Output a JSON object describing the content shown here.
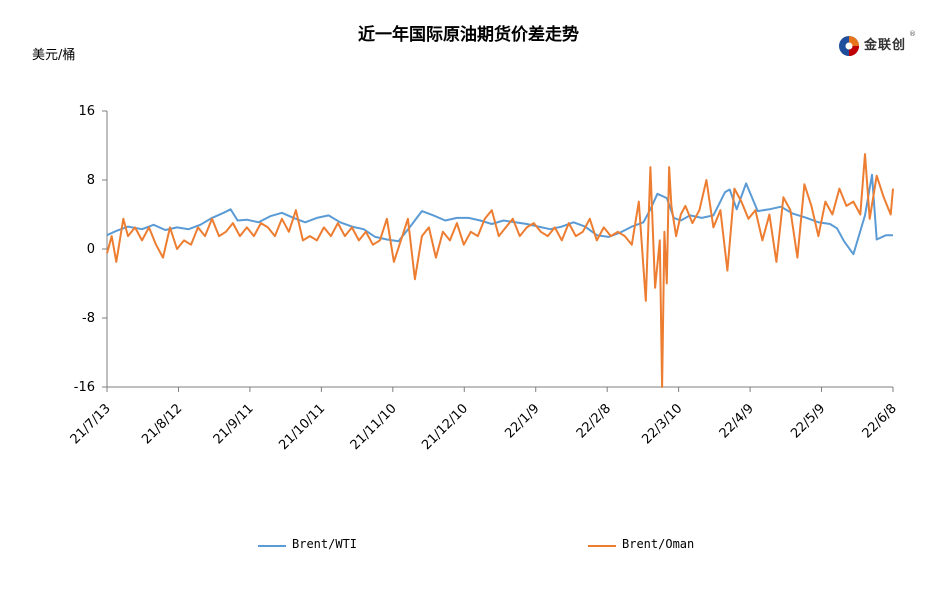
{
  "header": {
    "title": "近一年国际原油期货价差走势",
    "unit": "美元/桶",
    "logo_text": "金联创",
    "logo_reg": "®"
  },
  "chart_data": {
    "type": "line",
    "title": "近一年国际原油期货价差走势",
    "ylabel": "美元/桶",
    "ylim": [
      -16,
      16
    ],
    "yticks": [
      "16",
      "8",
      "0",
      "-8",
      "-16"
    ],
    "xticks": [
      "21/7/13",
      "21/8/12",
      "21/9/11",
      "21/10/11",
      "21/11/10",
      "21/12/10",
      "22/1/9",
      "22/2/8",
      "22/3/10",
      "22/4/9",
      "22/5/9",
      "22/6/8"
    ],
    "grid": false,
    "legend_position": "bottom",
    "series": [
      {
        "name": "Brent/WTI",
        "color": "#5b9bd5",
        "x": [
          "2021-07-13",
          "2021-07-17",
          "2021-07-22",
          "2021-07-28",
          "2021-08-02",
          "2021-08-07",
          "2021-08-12",
          "2021-08-17",
          "2021-08-22",
          "2021-08-27",
          "2021-09-01",
          "2021-09-04",
          "2021-09-07",
          "2021-09-11",
          "2021-09-16",
          "2021-09-21",
          "2021-09-26",
          "2021-10-01",
          "2021-10-06",
          "2021-10-11",
          "2021-10-16",
          "2021-10-21",
          "2021-10-26",
          "2021-10-31",
          "2021-11-05",
          "2021-11-10",
          "2021-11-15",
          "2021-11-20",
          "2021-11-25",
          "2021-11-30",
          "2021-12-05",
          "2021-12-10",
          "2021-12-15",
          "2021-12-20",
          "2021-12-25",
          "2021-12-30",
          "2022-01-04",
          "2022-01-09",
          "2022-01-14",
          "2022-01-19",
          "2022-01-24",
          "2022-01-29",
          "2022-02-03",
          "2022-02-08",
          "2022-02-13",
          "2022-02-18",
          "2022-02-23",
          "2022-02-28",
          "2022-03-03",
          "2022-03-06",
          "2022-03-10",
          "2022-03-13",
          "2022-03-16",
          "2022-03-20",
          "2022-03-25",
          "2022-03-30",
          "2022-04-04",
          "2022-04-06",
          "2022-04-09",
          "2022-04-13",
          "2022-04-18",
          "2022-04-23",
          "2022-04-28",
          "2022-05-03",
          "2022-05-09",
          "2022-05-14",
          "2022-05-19",
          "2022-05-22",
          "2022-05-25",
          "2022-05-29",
          "2022-06-03",
          "2022-06-06",
          "2022-06-08",
          "2022-06-12",
          "2022-06-15"
        ],
        "values": [
          1.6,
          2.1,
          2.6,
          2.3,
          2.8,
          2.2,
          2.5,
          2.3,
          2.8,
          3.6,
          4.2,
          4.6,
          3.3,
          3.4,
          3.1,
          3.8,
          4.2,
          3.6,
          3.1,
          3.6,
          3.9,
          3.1,
          2.6,
          2.3,
          1.4,
          1.1,
          0.9,
          2.6,
          4.4,
          3.9,
          3.3,
          3.6,
          3.6,
          3.3,
          2.9,
          3.3,
          3.1,
          2.9,
          2.6,
          2.3,
          2.6,
          3.1,
          2.6,
          1.6,
          1.4,
          1.9,
          2.6,
          3.1,
          4.6,
          6.4,
          5.9,
          3.6,
          3.3,
          3.9,
          3.6,
          3.9,
          6.6,
          6.9,
          4.6,
          7.6,
          4.4,
          4.6,
          4.9,
          4.1,
          3.6,
          3.1,
          2.9,
          2.4,
          0.9,
          -0.6,
          3.9,
          8.6,
          1.1,
          1.6,
          1.6
        ]
      },
      {
        "name": "Brent/Oman",
        "color": "#ed7d31",
        "x": [
          "2021-07-13",
          "2021-07-15",
          "2021-07-17",
          "2021-07-20",
          "2021-07-22",
          "2021-07-25",
          "2021-07-28",
          "2021-07-31",
          "2021-08-03",
          "2021-08-06",
          "2021-08-09",
          "2021-08-12",
          "2021-08-15",
          "2021-08-18",
          "2021-08-21",
          "2021-08-24",
          "2021-08-27",
          "2021-08-30",
          "2021-09-02",
          "2021-09-05",
          "2021-09-08",
          "2021-09-11",
          "2021-09-14",
          "2021-09-17",
          "2021-09-20",
          "2021-09-23",
          "2021-09-26",
          "2021-09-29",
          "2021-10-02",
          "2021-10-05",
          "2021-10-08",
          "2021-10-11",
          "2021-10-14",
          "2021-10-17",
          "2021-10-20",
          "2021-10-23",
          "2021-10-26",
          "2021-10-29",
          "2021-11-01",
          "2021-11-04",
          "2021-11-07",
          "2021-11-10",
          "2021-11-13",
          "2021-11-16",
          "2021-11-19",
          "2021-11-22",
          "2021-11-25",
          "2021-11-28",
          "2021-12-01",
          "2021-12-04",
          "2021-12-07",
          "2021-12-10",
          "2021-12-13",
          "2021-12-16",
          "2021-12-19",
          "2021-12-22",
          "2021-12-25",
          "2021-12-28",
          "2021-12-31",
          "2022-01-03",
          "2022-01-06",
          "2022-01-09",
          "2022-01-12",
          "2022-01-15",
          "2022-01-18",
          "2022-01-21",
          "2022-01-24",
          "2022-01-27",
          "2022-01-30",
          "2022-02-02",
          "2022-02-05",
          "2022-02-08",
          "2022-02-11",
          "2022-02-14",
          "2022-02-17",
          "2022-02-20",
          "2022-02-23",
          "2022-02-26",
          "2022-03-01",
          "2022-03-03",
          "2022-03-05",
          "2022-03-07",
          "2022-03-08",
          "2022-03-09",
          "2022-03-10",
          "2022-03-11",
          "2022-03-12",
          "2022-03-14",
          "2022-03-16",
          "2022-03-18",
          "2022-03-21",
          "2022-03-24",
          "2022-03-27",
          "2022-03-30",
          "2022-04-02",
          "2022-04-05",
          "2022-04-08",
          "2022-04-11",
          "2022-04-14",
          "2022-04-17",
          "2022-04-20",
          "2022-04-23",
          "2022-04-26",
          "2022-04-29",
          "2022-05-02",
          "2022-05-05",
          "2022-05-08",
          "2022-05-11",
          "2022-05-14",
          "2022-05-17",
          "2022-05-20",
          "2022-05-23",
          "2022-05-26",
          "2022-05-29",
          "2022-06-01",
          "2022-06-03",
          "2022-06-05",
          "2022-06-08",
          "2022-06-11",
          "2022-06-14",
          "2022-06-15"
        ],
        "values": [
          -0.5,
          1.5,
          -1.5,
          3.5,
          1.5,
          2.5,
          1.0,
          2.5,
          0.5,
          -1.0,
          2.5,
          0.0,
          1.0,
          0.5,
          2.5,
          1.5,
          3.5,
          1.5,
          2.0,
          3.0,
          1.5,
          2.5,
          1.5,
          3.0,
          2.5,
          1.5,
          3.5,
          2.0,
          4.5,
          1.0,
          1.5,
          1.0,
          2.5,
          1.5,
          3.0,
          1.5,
          2.5,
          1.0,
          2.0,
          0.5,
          1.0,
          3.5,
          -1.5,
          1.0,
          3.5,
          -3.5,
          1.5,
          2.5,
          -1.0,
          2.0,
          1.0,
          3.0,
          0.5,
          2.0,
          1.5,
          3.5,
          4.5,
          1.5,
          2.5,
          3.5,
          1.5,
          2.5,
          3.0,
          2.0,
          1.5,
          2.5,
          1.0,
          3.0,
          1.5,
          2.0,
          3.5,
          1.0,
          2.5,
          1.5,
          2.0,
          1.5,
          0.5,
          5.5,
          -6.0,
          9.5,
          -4.5,
          1.0,
          -16.0,
          2.0,
          -4.0,
          9.5,
          5.0,
          1.5,
          4.0,
          5.0,
          3.0,
          4.5,
          8.0,
          2.5,
          4.5,
          -2.5,
          7.0,
          5.5,
          3.5,
          4.5,
          1.0,
          4.0,
          -1.5,
          6.0,
          4.5,
          -1.0,
          7.5,
          5.0,
          1.5,
          5.5,
          4.0,
          7.0,
          5.0,
          5.5,
          4.0,
          11.0,
          3.5,
          8.5,
          6.0,
          4.0,
          7.0
        ]
      }
    ]
  },
  "legend": [
    {
      "label": "Brent/WTI",
      "color": "#5b9bd5"
    },
    {
      "label": "Brent/Oman",
      "color": "#ed7d31"
    }
  ]
}
